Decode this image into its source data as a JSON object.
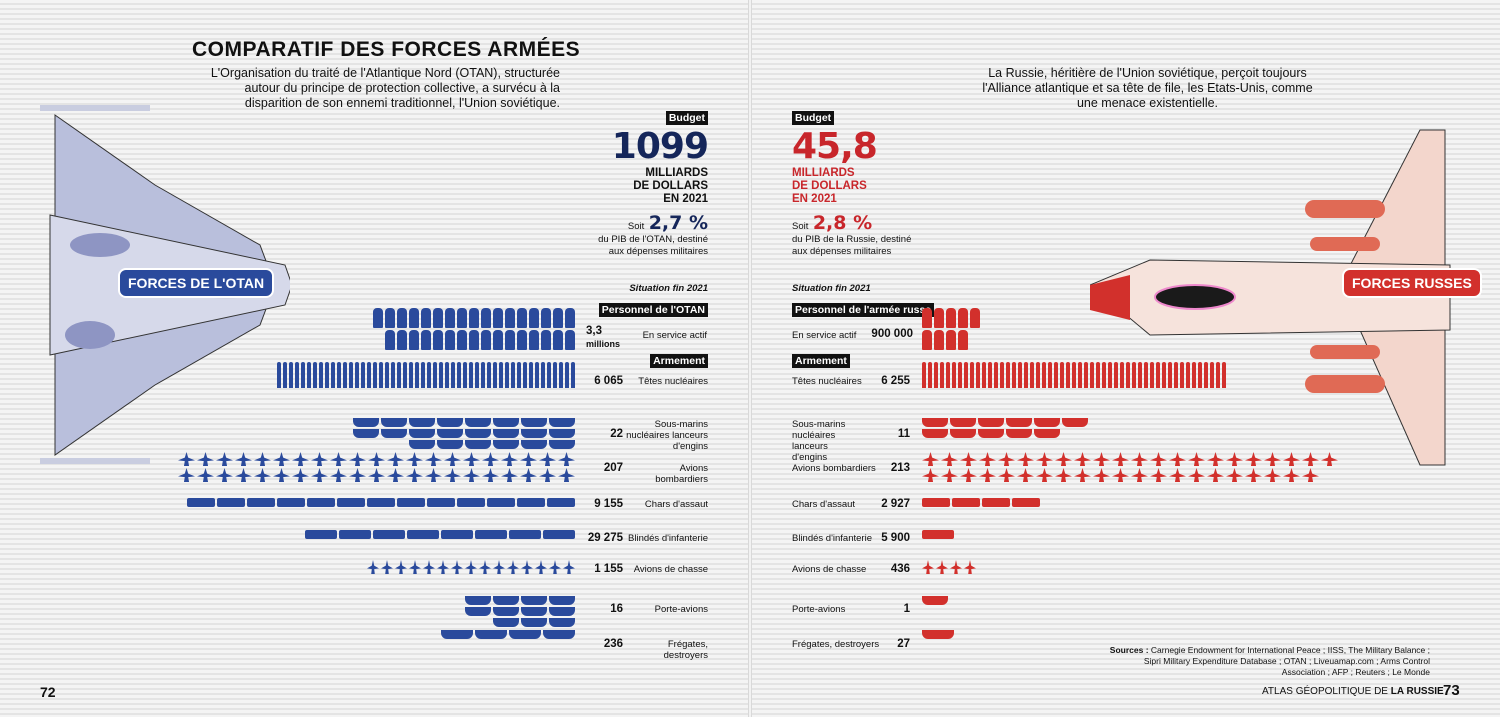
{
  "title": "COMPARATIF DES FORCES ARMÉES",
  "nato": {
    "intro": "L'Organisation du traité de l'Atlantique Nord (OTAN), structurée autour du principe de protection collective, a survécu à la disparition de son ennemi traditionnel, l'Union soviétique.",
    "badge": "FORCES DE L'OTAN",
    "budget_tag": "Budget",
    "budget": "1099",
    "budget_unit_1": "MILLIARDS",
    "budget_unit_2": "DE DOLLARS",
    "budget_unit_3": "EN 2021",
    "soit": "Soit",
    "pct": "2,7 %",
    "pct_text": "du PIB de l'OTAN, destiné aux dépenses militaires",
    "situation": "Situation fin 2021",
    "personnel_tag": "Personnel de l'OTAN",
    "armement_tag": "Armement",
    "personnel": {
      "value": "3,3",
      "unit": "millions",
      "label": "En service actif"
    },
    "rows": [
      {
        "label": "Têtes nucléaires",
        "value": "6 065"
      },
      {
        "label": "Sous-marins nucléaires lanceurs d'engins",
        "value": "22"
      },
      {
        "label": "Avions bombardiers",
        "value": "207"
      },
      {
        "label": "Chars d'assaut",
        "value": "9 155"
      },
      {
        "label": "Blindés d'infanterie",
        "value": "29 275"
      },
      {
        "label": "Avions de chasse",
        "value": "1 155"
      },
      {
        "label": "Porte-avions",
        "value": "16"
      },
      {
        "label": "Frégates, destroyers",
        "value": "236"
      }
    ],
    "page": "72",
    "color": "#2a4a9c"
  },
  "russia": {
    "intro": "La Russie, héritière de l'Union soviétique, perçoit toujours l'Alliance atlantique et sa tête de file, les Etats-Unis, comme une menace existentielle.",
    "badge": "FORCES RUSSES",
    "budget_tag": "Budget",
    "budget": "45,8",
    "budget_unit_1": "MILLIARDS",
    "budget_unit_2": "DE DOLLARS",
    "budget_unit_3": "EN 2021",
    "soit": "Soit",
    "pct": "2,8 %",
    "pct_text": "du PIB de la Russie, destiné aux dépenses militaires",
    "situation": "Situation fin 2021",
    "personnel_tag": "Personnel de l'armée russe",
    "armement_tag": "Armement",
    "personnel": {
      "value": "900 000",
      "label": "En service actif"
    },
    "rows": [
      {
        "label": "Têtes nucléaires",
        "value": "6 255"
      },
      {
        "label": "Sous-marins nucléaires lanceurs d'engins",
        "value": "11"
      },
      {
        "label": "Avions bombardiers",
        "value": "213"
      },
      {
        "label": "Chars d'assaut",
        "value": "2 927"
      },
      {
        "label": "Blindés d'infanterie",
        "value": "5 900"
      },
      {
        "label": "Avions de chasse",
        "value": "436"
      },
      {
        "label": "Porte-avions",
        "value": "1"
      },
      {
        "label": "Frégates, destroyers",
        "value": "27"
      }
    ],
    "page": "73",
    "color": "#d2302c"
  },
  "sources_label": "Sources :",
  "sources": "Carnegie Endowment for International Peace ; IISS, The Military Balance ; Sipri Military Expenditure Database ; OTAN ; Liveuamap.com ; Arms Control Association ; AFP ; Reuters ; Le Monde",
  "footer": {
    "prefix": "ATLAS GÉOPOLITIQUE DE",
    "bold": "LA RUSSIE"
  }
}
